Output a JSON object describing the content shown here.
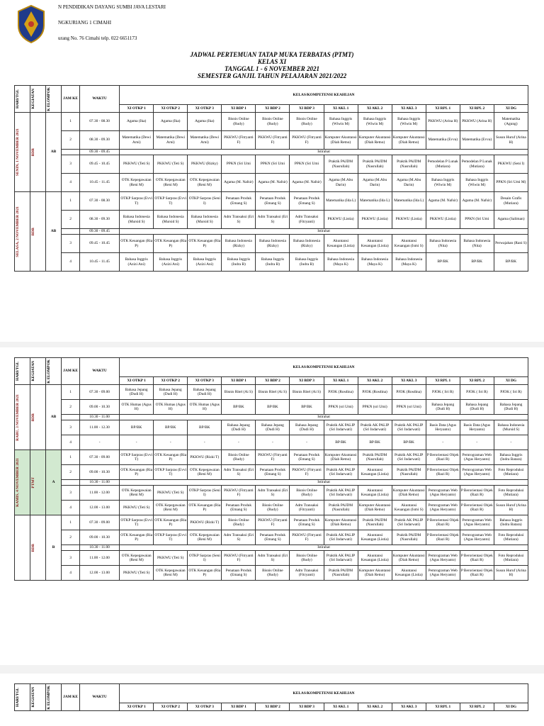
{
  "header": {
    "line1": "N PENDIDIKAN DAYANG SUMBI JAVA LESTARI",
    "line2": "NGKURIANG 1 CIMAHI",
    "line3": "urang No. 76 Cimahi telp. 022 6651173"
  },
  "titles": {
    "t1": "JADWAL PERTEMUAN TATAP MUKA TERBATAS (PTMT)",
    "t2": "KELAS XI",
    "t3": "TANGGAL 1 - 6 NOVEMBER 2021",
    "t4": "SEMESTER GANJIL TAHUN PELAJARAN 2021/2022"
  },
  "cols": {
    "hari": "HARI/TGL",
    "kegiatan": "KEGIATAN",
    "kelompok": "K ELOMPOK",
    "jam": "JAM KE",
    "waktu": "WAKTU",
    "kelas": "KELAS/KOMPETENSI KEAHLIAN"
  },
  "classes": [
    "XI OTKP 1",
    "XI OTKP 2",
    "XI OTKP 3",
    "XI BDP 1",
    "XI BDP 2",
    "XI BDP 3",
    "XI AKL 1",
    "XI AKL 2",
    "XI AKL 3",
    "XI RPL 1",
    "XI RPL 2",
    "XI DG"
  ],
  "t1": {
    "days": [
      {
        "day": "SENIN, 1 NOVEMBER 2021",
        "kegiatan": "BDR",
        "kelompok": "AB",
        "green": false,
        "rows": [
          {
            "jam": "1",
            "waktu": "07.30 - 08.30",
            "cells": [
              "Agama (Ika)",
              "Agama (Ika)",
              "Agama (Ika)",
              "Bisnis Online (Rudy)",
              "Bisnis Online (Rudy)",
              "Bisnis Online (Rudy)",
              "Bahasa Inggris (Wiwin M)",
              "Bahasa Inggris (Wiwin M)",
              "Bahasa Inggris (Wiwin M)",
              "PKKWU (Arina H)",
              "PKKWU (Arina H)",
              "Matematika (Agung)"
            ]
          },
          {
            "jam": "2",
            "waktu": "08.30 - 09.30",
            "cells": [
              "Matematika (Dewi Arni)",
              "Matematika (Dewi Arni)",
              "Matematika (Dewi Arni)",
              "PKKWU (Fitryanti F)",
              "PKKWU (Fitryanti F)",
              "PKKWU (Fitryanti F)",
              "Komputer Akuntansi (Diah Retno)",
              "Komputer Akuntansi (Diah Retno)",
              "Komputer Akuntansi (Diah Retno)",
              "Matematika (Evva)",
              "Matematika (Evva)",
              "Susun Huruf (Arina H)"
            ]
          },
          {
            "jam": "",
            "waktu": "09.30 - 09.45",
            "istirahat": "Istirahat"
          },
          {
            "jam": "3",
            "waktu": "09.45 - 10.45",
            "cells": [
              "PKKWU (Teti S)",
              "PKKWU (Teti S)",
              "PKKWU (Rizky)",
              "PPKN (Sri Umi",
              "PPKN (Sri Umi",
              "PPKN (Sri Umi",
              "Praktik PAJDM (Nasrullah)",
              "Praktik PAJDM (Nasrullah)",
              "Praktik PAJDM (Nasrullah)",
              "Pemodelan P Lunak (Mutiara)",
              "Pemodelan P Lunak (Mutiara)",
              "PKKWU (Seni I)"
            ]
          },
          {
            "jam": "4",
            "waktu": "10.45 - 11.45",
            "cells": [
              "OTK Kepegawaian (Reni M)",
              "OTK Kepegawaian (Reni M)",
              "OTK Kepegawaian (Reni M)",
              "Agama (M. Nafsir)",
              "Agama (M. Nafsir)",
              "Agama (M. Nafsir)",
              "Agama (M.Abu Darin)",
              "Agama (M.Abu Darin)",
              "Agama (M.Abu Darin)",
              "Bahasa Inggris (Wiwin M)",
              "Bahasa Inggris (Wiwin M)",
              "PPKN (Sri Umi M)"
            ]
          }
        ]
      },
      {
        "day": "SELASA, 2 NOVEMBER 2021",
        "kegiatan": "BDR",
        "kelompok": "AB",
        "green": false,
        "rows": [
          {
            "jam": "1",
            "waktu": "07.30 - 08.30",
            "cells": [
              "OTKP Sarpras (Evvi T)",
              "OTKP Sarpras (Evvi T)",
              "OTKP Sarpras (Seni I)",
              "Penataan Produk (Emang S)",
              "Penataan Produk (Emang S)",
              "Penataan Produk (Emang S)",
              "Matematika (Ida L)",
              "Matematika (Ida L)",
              "Matematika (Ida L)",
              "Agama (M. Nafsir)",
              "Agama (M. Nafsir)",
              "Desain Grafis (Mutiara)"
            ]
          },
          {
            "jam": "2",
            "waktu": "08.30 - 09.30",
            "cells": [
              "Bahasa Indonesia (Mursid S)",
              "Bahasa Indonesia (Mursid S)",
              "Bahasa Indonesia (Mursid S)",
              "Adm Transaksi (Eri S)",
              "Adm Transaksi (Eri S)",
              "Adm Transaksi (Fitryanti)",
              "PKKWU (Listia)",
              "PKKWU (Listia)",
              "PKKWU (Listia)",
              "PKKWU (Listia)",
              "PPKN (Sri Umi",
              "Agama (Saliman)"
            ]
          },
          {
            "jam": "",
            "waktu": "09.30 - 09.45",
            "istirahat": "Istirahat"
          },
          {
            "jam": "3",
            "waktu": "09.45 - 10.45",
            "cells": [
              "OTK Keuangan (Ria P)",
              "OTK Keuangan (Ria P)",
              "OTK Keuangan (Ria P)",
              "Bahasa Indonesia (Rizky)",
              "Bahasa Indonesia (Rizky)",
              "Bahasa Indonesia (Rizky)",
              "Akuntansi Keuangan (Listia)",
              "Akuntansi Keuangan (Listia)",
              "Akuntansi Keuangan (Ismi S)",
              "Bahasa Indonesia (Nita)",
              "Bahasa Indonesia (Nita)",
              "Perwajahan (Rani S)"
            ]
          },
          {
            "jam": "4",
            "waktu": "10.45 - 11.45",
            "cells": [
              "Bahasa Inggris (Azizi Ani)",
              "Bahasa Inggris (Azizi Ani)",
              "Bahasa Inggris (Azizi Ani)",
              "Bahasa Inggris (Indra B)",
              "Bahasa Inggris (Indra B)",
              "Bahasa Inggris (Indra B)",
              "Bahasa Indonesia (Maya K)",
              "Bahasa Indonesia (Maya K)",
              "Bahasa Indonesia (Maya K)",
              "BP/BK",
              "BP/BK",
              "BP/BK"
            ]
          }
        ]
      }
    ]
  },
  "t2": {
    "days": [
      {
        "day": "RABU, 3 NOVEMBER 2021",
        "kegiatan": "BDR",
        "kelompok": "AB",
        "green": false,
        "rows": [
          {
            "jam": "1",
            "waktu": "07.30 - 09.00",
            "cells": [
              "Bahasa Jepang (Dudi H)",
              "Bahasa Jepang (Dudi H)",
              "Bahasa Jepang (Dudi H)",
              "Bisnis Ritel (Ai S)",
              "Bisnis Ritel (Ai S)",
              "Bisnis Ritel (Ai S)",
              "PJOK (Rosdina)",
              "PJOK (Rosdina)",
              "PJOK (Rosdina)",
              "PJOK ( Sri R)",
              "PJOK ( Sri R)",
              "PJOK ( Sri R)"
            ]
          },
          {
            "jam": "2",
            "waktu": "09.00 - 10.30",
            "cells": [
              "OTK Humas (Agus H)",
              "OTK Humas (Agus H)",
              "OTK Humas (Agus H)",
              "BP/BK",
              "BP/BK",
              "BP/BK",
              "PPKN (sri Umi)",
              "PPKN (sri Umi)",
              "PPKN (sri Umi)",
              "Bahasa Jepang (Dudi H)",
              "Bahasa Jepang (Dudi H)",
              "Bahasa Jepang (Dudi H)"
            ]
          },
          {
            "jam": "",
            "waktu": "10.30 - 11.00",
            "istirahat": "Istirahat"
          },
          {
            "jam": "3",
            "waktu": "11.00 - 12.30",
            "cells": [
              "BP/BK",
              "BP/BK",
              "BP/BK",
              "Bahasa Jepang (Dudi H)",
              "Bahasa Jepang (Dudi H)",
              "Bahasa Jepang (Dudi H)",
              "Praktik AK PALIP (Sri Indarwati)",
              "Praktik AK PALIP (Sri Indarwati)",
              "Praktik AK PALIP (Sri Indarwati)",
              "Basis Data (Agus Heryanto)",
              "Basis Data (Agus Heryanto)",
              "Bahasa Indonesia (Mursid S)"
            ]
          },
          {
            "jam": "4",
            "waktu": "-",
            "cells": [
              "-",
              "-",
              "-",
              "-",
              "-",
              "-",
              "BP/BK",
              "BP/BK",
              "BP/BK",
              "-",
              "-",
              "-"
            ]
          }
        ]
      },
      {
        "day": "KAMIS, 4 NOVEMBER 2021",
        "kegiatan": "PTMT",
        "kelompok": "A",
        "green": true,
        "rows": [
          {
            "jam": "1",
            "waktu": "07.30 - 09.00",
            "cells": [
              "OTKP Sarpras (Evvi T)",
              "OTK Keuangan (Ria P)",
              "PKKWU (Rizki T)",
              "Bisnis Online (Rudy)",
              "PKKWU (Fitryanti F)",
              "Penataan Produk (Emang S)",
              "Komputer Akuntansi (Diah Retno)",
              "Praktik PAJDM (Nasrullah)",
              "Praktik AK PALIP (Sri Indarwati)",
              "P Berorientasi Objek (Razi R)",
              "Pemrograman Web (Agus Heryanto)",
              "Bahasa Inggris (Indra Batara)"
            ]
          },
          {
            "jam": "2",
            "waktu": "09.00 - 10.30",
            "cells": [
              "OTK Keuangan (Ria P)",
              "OTKP Sarpras (Evvi T)",
              "OTK Kepegawaian (Reni M)",
              "Adm Transaksi (Eri S)",
              "Penataan Produk (Emang S)",
              "PKKWU (Fitryanti F)",
              "Praktik AK PALIP (Sri Indarwati)",
              "Akuntansi Keuangan (Listia)",
              "Praktik PAJDM (Nasrullah)",
              "P Berorientasi Objek (Razi R)",
              "Pemrograman Web (Agus Heryanto)",
              "Foto Reproduksi (Mutiara)"
            ]
          },
          {
            "jam": "",
            "waktu": "10.30 - 11.00",
            "istirahat": "Istirahat"
          },
          {
            "jam": "3",
            "waktu": "11.00 - 12.00",
            "cells": [
              "OTK Kepegawaian (Reni M)",
              "PKKWU (Teti S)",
              "OTKP Sarpras (Seni I)",
              "PKKWU (Fitryanti F)",
              "Adm Transaksi (Eri S)",
              "Bisnis Online (Rudy)",
              "Praktik AK PALIP (Sri Indarwati)",
              "Akuntansi Keuangan (Listia)",
              "Komputer Akuntansi (Diah Retno)",
              "Pemrograman Web (Agus Heryanto)",
              "P Berorientasi Objek (Razi R)",
              "Foto Reproduksi (Mutiara)"
            ]
          },
          {
            "jam": "4",
            "waktu": "12.00 - 13.00",
            "cells": [
              "PKKWU (Teti S)",
              "OTK Kepegawaian (Reni M)",
              "OTK Keuangan (Ria P)",
              "Penataan Produk (Emang S)",
              "Bisnis Online (Rudy)",
              "Adm Transaksi (Fitryanti)",
              "Praktik PAJDM (Nasrullah)",
              "Komputer Akuntansi (Diah Retno)",
              "Akuntansi Keuangan (Ismi S)",
              "Pemrograman Web (Agus Heryanto)",
              "P Berorientasi Objek (Razi R)",
              "Susun Huruf (Arina H)"
            ]
          }
        ]
      },
      {
        "day": "",
        "kegiatan": "BDR",
        "kelompok": "B",
        "green": false,
        "rows": [
          {
            "jam": "1",
            "waktu": "07.30 - 09.00",
            "cells": [
              "OTKP Sarpras (Evvi T)",
              "OTK Keuangan (Ria P)",
              "PKKWU (Rizki T)",
              "Bisnis Online (Rudy)",
              "PKKWU (Fitryanti F)",
              "Penataan Produk (Emang S)",
              "Komputer Akuntansi (Diah Retno)",
              "Praktik PAJDM (Nasrullah)",
              "Praktik AK PALIP (Sri Indarwati)",
              "P Berorientasi Objek (Razi R)",
              "Pemrograman Web (Agus Heryanto)",
              "Bahasa Inggris (Indra Batara)"
            ]
          },
          {
            "jam": "2",
            "waktu": "09.00 - 10.30",
            "cells": [
              "OTK Keuangan (Ria P)",
              "OTKP Sarpras (Evvi T)",
              "OTK Kepegawaian (Reni M)",
              "Adm Transaksi (Eri S)",
              "Penataan Produk (Emang S)",
              "PKKWU (Fitryanti F)",
              "Praktik AK PALIP (Sri Indarwati)",
              "Akuntansi Keuangan (Listia)",
              "Praktik PAJDM (Nasrullah)",
              "P Berorientasi Objek (Razi R)",
              "Pemrograman Web (Agus Heryanto)",
              "Foto Reproduksi (Mutiara)"
            ]
          },
          {
            "jam": "",
            "waktu": "10.30 - 11.00",
            "istirahat": "Istirahat"
          },
          {
            "jam": "3",
            "waktu": "11.00 - 12.00",
            "cells": [
              "OTK Kepegawaian (Reni M)",
              "PKKWU (Teti S)",
              "OTKP Sarpras (Seni I)",
              "PKKWU (Fitryanti F)",
              "Adm Transaksi (Eri S)",
              "Bisnis Online (Rudy)",
              "Praktik AK PALIP (Sri Indarwati)",
              "Akuntansi Keuangan (Listia)",
              "Komputer Akuntansi (Diah Retno)",
              "Pemrograman Web (Agus Heryanto)",
              "P Berorientasi Objek (Razi R)",
              "Foto Reproduksi (Mutiara)"
            ]
          },
          {
            "jam": "4",
            "waktu": "12.00 - 13.00",
            "cells": [
              "PKKWU (Teti S)",
              "OTK Kepegawaian (Reni M)",
              "OTK Keuangan (Ria P)",
              "Penataan Produk (Emang S)",
              "Bisnis Online (Rudy)",
              "Adm Transaksi (Fitryanti)",
              "Praktik PAJDM (Nasrullah)",
              "Komputer Akuntansi (Diah Retno)",
              "Akuntansi Keuangan (Listia)",
              "Pemrograman Web (Agus Heryanto)",
              "P Berorientasi Objek (Razi R)",
              "Susun Huruf (Arina H)"
            ]
          }
        ]
      }
    ]
  }
}
